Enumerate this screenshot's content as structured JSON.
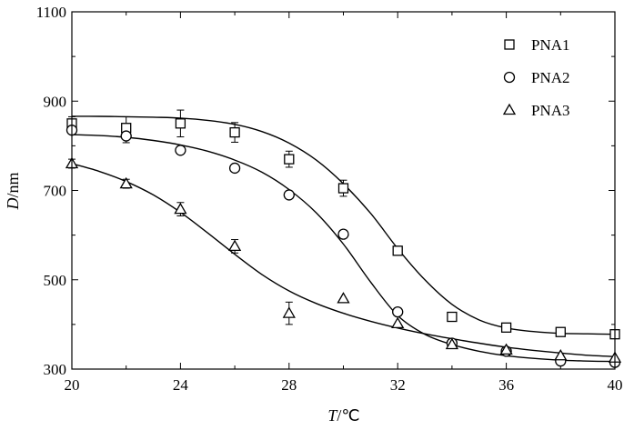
{
  "chart_data": {
    "type": "scatter",
    "xlabel_var": "T",
    "xlabel_unit": "/℃",
    "ylabel_var": "D",
    "ylabel_unit": "/nm",
    "xlim": [
      20,
      40
    ],
    "ylim": [
      300,
      1100
    ],
    "xticks": [
      20,
      24,
      28,
      32,
      36,
      40
    ],
    "yticks": [
      300,
      500,
      700,
      900,
      1100
    ],
    "x_minor_step": 2,
    "y_minor_step": 100,
    "grid": false,
    "legend_position": "top-right",
    "series": [
      {
        "name": "PNA1",
        "marker": "square",
        "points": [
          {
            "x": 20,
            "y": 850,
            "err": 15
          },
          {
            "x": 22,
            "y": 840,
            "err": 25
          },
          {
            "x": 24,
            "y": 850,
            "err": 30
          },
          {
            "x": 26,
            "y": 830,
            "err": 22
          },
          {
            "x": 28,
            "y": 770,
            "err": 18
          },
          {
            "x": 30,
            "y": 705,
            "err": 18
          },
          {
            "x": 32,
            "y": 565,
            "err": 10
          },
          {
            "x": 34,
            "y": 417,
            "err": 5
          },
          {
            "x": 36,
            "y": 393,
            "err": 5
          },
          {
            "x": 38,
            "y": 383,
            "err": 4
          },
          {
            "x": 40,
            "y": 378,
            "err": 4
          }
        ],
        "fit": {
          "x": [
            20,
            21,
            22,
            23,
            24,
            25,
            26,
            27,
            28,
            29,
            30,
            31,
            32,
            33,
            34,
            35,
            36,
            37,
            38,
            39,
            40
          ],
          "y": [
            866,
            866,
            865,
            864,
            862,
            857,
            848,
            832,
            806,
            768,
            715,
            649,
            570,
            500,
            445,
            410,
            392,
            384,
            380,
            379,
            378
          ]
        }
      },
      {
        "name": "PNA2",
        "marker": "circle",
        "points": [
          {
            "x": 20,
            "y": 835,
            "err": 0
          },
          {
            "x": 22,
            "y": 822,
            "err": 15
          },
          {
            "x": 24,
            "y": 790,
            "err": 8
          },
          {
            "x": 26,
            "y": 750,
            "err": 6
          },
          {
            "x": 28,
            "y": 690,
            "err": 6
          },
          {
            "x": 30,
            "y": 602,
            "err": 5
          },
          {
            "x": 32,
            "y": 428,
            "err": 5
          },
          {
            "x": 34,
            "y": 358,
            "err": 4
          },
          {
            "x": 36,
            "y": 340,
            "err": 4
          },
          {
            "x": 38,
            "y": 318,
            "err": 3
          },
          {
            "x": 40,
            "y": 315,
            "err": 3
          }
        ],
        "fit": {
          "x": [
            20,
            21,
            22,
            23,
            24,
            25,
            26,
            27,
            28,
            29,
            30,
            31,
            32,
            33,
            34,
            35,
            36,
            37,
            38,
            39,
            40
          ],
          "y": [
            825,
            823,
            819,
            812,
            802,
            788,
            768,
            741,
            702,
            650,
            580,
            495,
            420,
            378,
            355,
            340,
            330,
            324,
            320,
            318,
            317
          ]
        }
      },
      {
        "name": "PNA3",
        "marker": "triangle",
        "points": [
          {
            "x": 20,
            "y": 760,
            "err": 10
          },
          {
            "x": 22,
            "y": 715,
            "err": 10
          },
          {
            "x": 24,
            "y": 658,
            "err": 15
          },
          {
            "x": 26,
            "y": 575,
            "err": 15
          },
          {
            "x": 28,
            "y": 425,
            "err": 25
          },
          {
            "x": 30,
            "y": 458,
            "err": 0
          },
          {
            "x": 32,
            "y": 402,
            "err": 0
          },
          {
            "x": 34,
            "y": 355,
            "err": 0
          },
          {
            "x": 36,
            "y": 343,
            "err": 0
          },
          {
            "x": 38,
            "y": 330,
            "err": 0
          },
          {
            "x": 40,
            "y": 325,
            "err": 0
          }
        ],
        "fit": {
          "x": [
            20,
            21,
            22,
            23,
            24,
            25,
            26,
            27,
            28,
            29,
            30,
            31,
            32,
            33,
            34,
            35,
            36,
            37,
            38,
            39,
            40
          ],
          "y": [
            760,
            743,
            720,
            690,
            651,
            605,
            557,
            512,
            475,
            447,
            425,
            407,
            392,
            379,
            368,
            358,
            349,
            342,
            336,
            331,
            328
          ]
        }
      }
    ]
  }
}
